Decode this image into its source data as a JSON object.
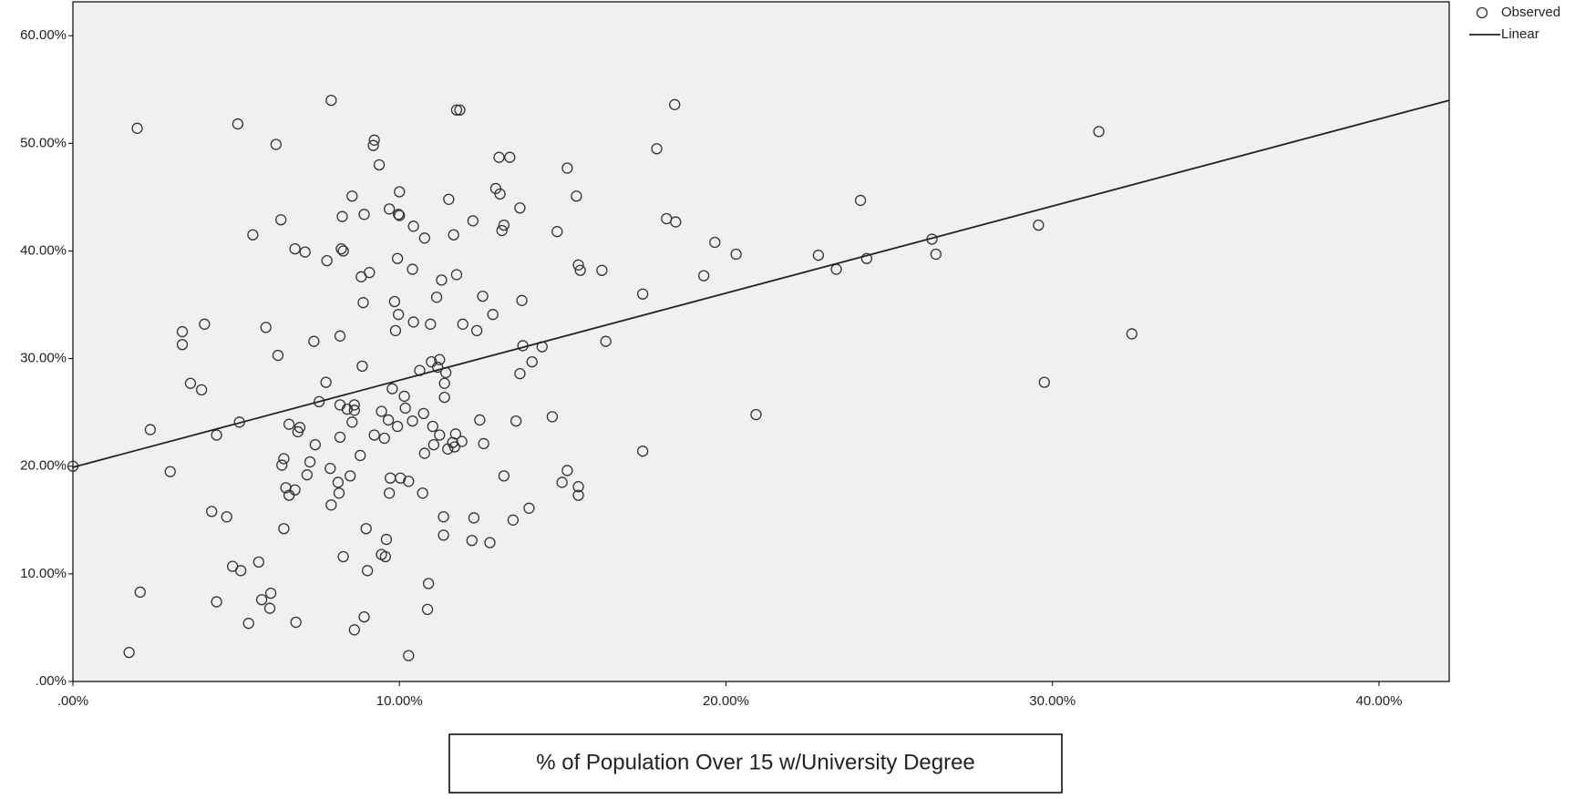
{
  "chart_data": {
    "type": "scatter",
    "x_label": "% of Population Over 15 w/University Degree",
    "xlim": [
      0,
      42.15
    ],
    "ylim": [
      0,
      63.15
    ],
    "xticks": [
      {
        "value": 0,
        "label": ".00%"
      },
      {
        "value": 10,
        "label": "10.00%"
      },
      {
        "value": 20,
        "label": "20.00%"
      },
      {
        "value": 30,
        "label": "30.00%"
      },
      {
        "value": 40,
        "label": "40.00%"
      }
    ],
    "yticks": [
      {
        "value": 0,
        "label": ".00%"
      },
      {
        "value": 10,
        "label": "10.00%"
      },
      {
        "value": 20,
        "label": "20.00%"
      },
      {
        "value": 30,
        "label": "30.00%"
      },
      {
        "value": 40,
        "label": "40.00%"
      },
      {
        "value": 50,
        "label": "50.00%"
      },
      {
        "value": 60,
        "label": "60.00%"
      }
    ],
    "grid": false,
    "background": "#f0f0f0",
    "legend": "top-right",
    "series": [
      {
        "name": "Observed",
        "type": "scatter",
        "color": "#333333",
        "x": [
          0.0,
          1.97,
          1.72,
          2.06,
          2.37,
          2.98,
          3.35,
          3.35,
          3.6,
          3.94,
          4.03,
          4.25,
          4.4,
          4.4,
          4.71,
          4.89,
          5.05,
          5.1,
          5.14,
          5.38,
          5.51,
          5.69,
          5.78,
          5.91,
          6.03,
          6.06,
          6.22,
          6.28,
          6.37,
          6.4,
          6.46,
          6.46,
          6.52,
          6.62,
          6.62,
          6.8,
          6.8,
          6.83,
          6.89,
          6.95,
          7.11,
          7.17,
          7.26,
          7.38,
          7.42,
          7.54,
          7.75,
          7.78,
          7.88,
          7.91,
          7.91,
          8.12,
          8.15,
          8.18,
          8.18,
          8.18,
          8.22,
          8.25,
          8.28,
          8.28,
          8.4,
          8.49,
          8.55,
          8.55,
          8.62,
          8.62,
          8.62,
          8.8,
          8.83,
          8.86,
          8.89,
          8.92,
          8.92,
          8.98,
          9.02,
          9.08,
          9.2,
          9.23,
          9.23,
          9.38,
          9.45,
          9.45,
          9.54,
          9.57,
          9.6,
          9.66,
          9.69,
          9.69,
          9.72,
          9.78,
          9.85,
          9.88,
          9.94,
          9.94,
          9.97,
          9.97,
          10.0,
          10.0,
          10.03,
          10.15,
          10.18,
          10.28,
          10.28,
          10.4,
          10.4,
          10.43,
          10.43,
          10.62,
          10.71,
          10.74,
          10.77,
          10.77,
          10.86,
          10.89,
          10.95,
          10.98,
          11.02,
          11.05,
          11.14,
          11.17,
          11.23,
          11.23,
          11.29,
          11.35,
          11.35,
          11.38,
          11.38,
          11.42,
          11.48,
          11.51,
          11.63,
          11.66,
          11.69,
          11.72,
          11.75,
          11.75,
          11.85,
          11.91,
          11.94,
          12.22,
          12.25,
          12.28,
          12.37,
          12.46,
          12.55,
          12.58,
          12.77,
          12.86,
          12.95,
          13.05,
          13.08,
          13.14,
          13.2,
          13.2,
          13.38,
          13.48,
          13.57,
          13.69,
          13.69,
          13.75,
          13.78,
          13.97,
          14.06,
          14.37,
          14.68,
          14.83,
          14.98,
          15.14,
          15.14,
          15.42,
          15.48,
          15.48,
          15.48,
          15.54,
          16.2,
          16.32,
          17.45,
          17.45,
          17.88,
          18.18,
          18.43,
          18.46,
          19.32,
          19.66,
          20.31,
          20.92,
          22.83,
          23.38,
          24.12,
          24.31,
          26.31,
          26.43,
          29.57,
          29.75,
          31.42,
          32.43
        ],
        "values": [
          20.0,
          51.4,
          2.7,
          8.3,
          23.4,
          19.5,
          32.5,
          31.3,
          27.7,
          27.1,
          33.2,
          15.8,
          22.9,
          7.4,
          15.3,
          10.7,
          51.8,
          24.1,
          10.3,
          5.4,
          41.5,
          11.1,
          7.6,
          32.9,
          6.8,
          8.2,
          49.9,
          30.3,
          42.9,
          20.1,
          20.7,
          14.2,
          18.0,
          23.9,
          17.3,
          17.8,
          40.2,
          5.5,
          23.2,
          23.6,
          39.9,
          19.2,
          20.4,
          31.6,
          22.0,
          26.0,
          27.8,
          39.1,
          19.8,
          16.4,
          54.0,
          18.5,
          17.5,
          32.1,
          25.7,
          22.7,
          40.2,
          43.2,
          40.0,
          11.6,
          25.3,
          19.1,
          45.1,
          24.1,
          25.2,
          25.7,
          4.8,
          21.0,
          37.6,
          29.3,
          35.2,
          43.4,
          6.0,
          14.2,
          10.3,
          38.0,
          49.8,
          50.3,
          22.9,
          48.0,
          25.1,
          11.8,
          22.6,
          11.6,
          13.2,
          24.3,
          43.9,
          17.5,
          18.9,
          27.2,
          35.3,
          32.6,
          39.3,
          23.7,
          34.1,
          43.4,
          45.5,
          43.3,
          18.9,
          26.5,
          25.4,
          18.6,
          2.4,
          38.3,
          24.2,
          33.4,
          42.3,
          28.9,
          17.5,
          24.9,
          21.2,
          41.2,
          6.7,
          9.1,
          33.2,
          29.7,
          23.7,
          22.0,
          35.7,
          29.2,
          29.9,
          22.9,
          37.3,
          15.3,
          13.6,
          27.7,
          26.4,
          28.7,
          21.6,
          44.8,
          22.2,
          41.5,
          21.8,
          23.0,
          37.8,
          53.1,
          53.1,
          22.3,
          33.2,
          13.1,
          42.8,
          15.2,
          32.6,
          24.3,
          35.8,
          22.1,
          12.9,
          34.1,
          45.8,
          48.7,
          45.3,
          41.9,
          19.1,
          42.4,
          48.7,
          15.0,
          24.2,
          44.0,
          28.6,
          35.4,
          31.2,
          16.1,
          29.7,
          31.1,
          24.6,
          41.8,
          18.5,
          19.6,
          47.7,
          45.1,
          38.7,
          18.1,
          17.3,
          38.2,
          38.2,
          31.6,
          36.0,
          21.4,
          49.5,
          43.0,
          53.6,
          42.7,
          37.7,
          40.8,
          39.7,
          24.8,
          39.6,
          38.3,
          44.7,
          39.3,
          41.1,
          39.7,
          42.4,
          27.8,
          51.1,
          32.3
        ]
      },
      {
        "name": "Linear",
        "type": "line",
        "color": "#222222",
        "x": [
          0,
          42.15
        ],
        "values": [
          19.9,
          54.0
        ]
      }
    ]
  }
}
